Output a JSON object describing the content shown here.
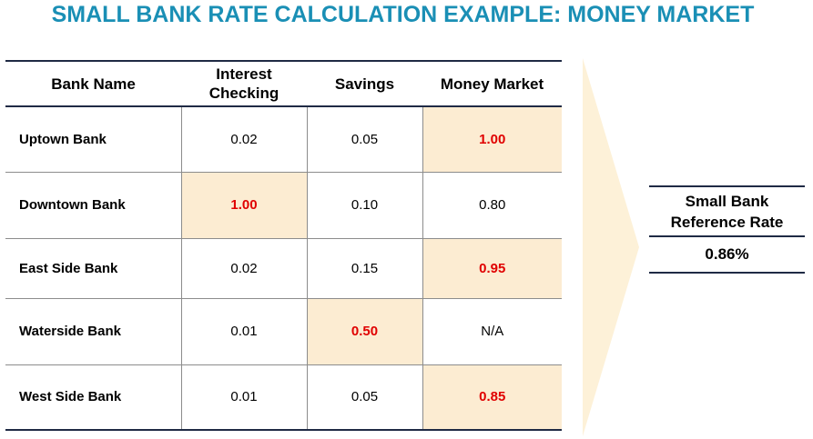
{
  "title": "SMALL BANK RATE CALCULATION EXAMPLE: MONEY MARKET",
  "table": {
    "headers": {
      "bank_name": "Bank Name",
      "interest_checking": "Interest\nChecking",
      "savings": "Savings",
      "money_market": "Money Market"
    },
    "rows": [
      {
        "bank": "Uptown Bank",
        "checking": "0.02",
        "savings": "0.05",
        "money_market": "1.00",
        "highlighted": "money_market"
      },
      {
        "bank": "Downtown Bank",
        "checking": "1.00",
        "savings": "0.10",
        "money_market": "0.80",
        "highlighted": "checking"
      },
      {
        "bank": "East Side Bank",
        "checking": "0.02",
        "savings": "0.15",
        "money_market": "0.95",
        "highlighted": "money_market"
      },
      {
        "bank": "Waterside Bank",
        "checking": "0.01",
        "savings": "0.50",
        "money_market": "N/A",
        "highlighted": "savings"
      },
      {
        "bank": "West Side Bank",
        "checking": "0.01",
        "savings": "0.05",
        "money_market": "0.85",
        "highlighted": "money_market"
      }
    ]
  },
  "reference_rate": {
    "label": "Small Bank\nReference Rate",
    "value": "0.86%"
  },
  "colors": {
    "title": "#1a8fb5",
    "highlight_fill": "#fcecd2",
    "highlight_text": "#e00000",
    "arrow_fill": "#fdf1d8",
    "rule": "#1f2a44"
  }
}
